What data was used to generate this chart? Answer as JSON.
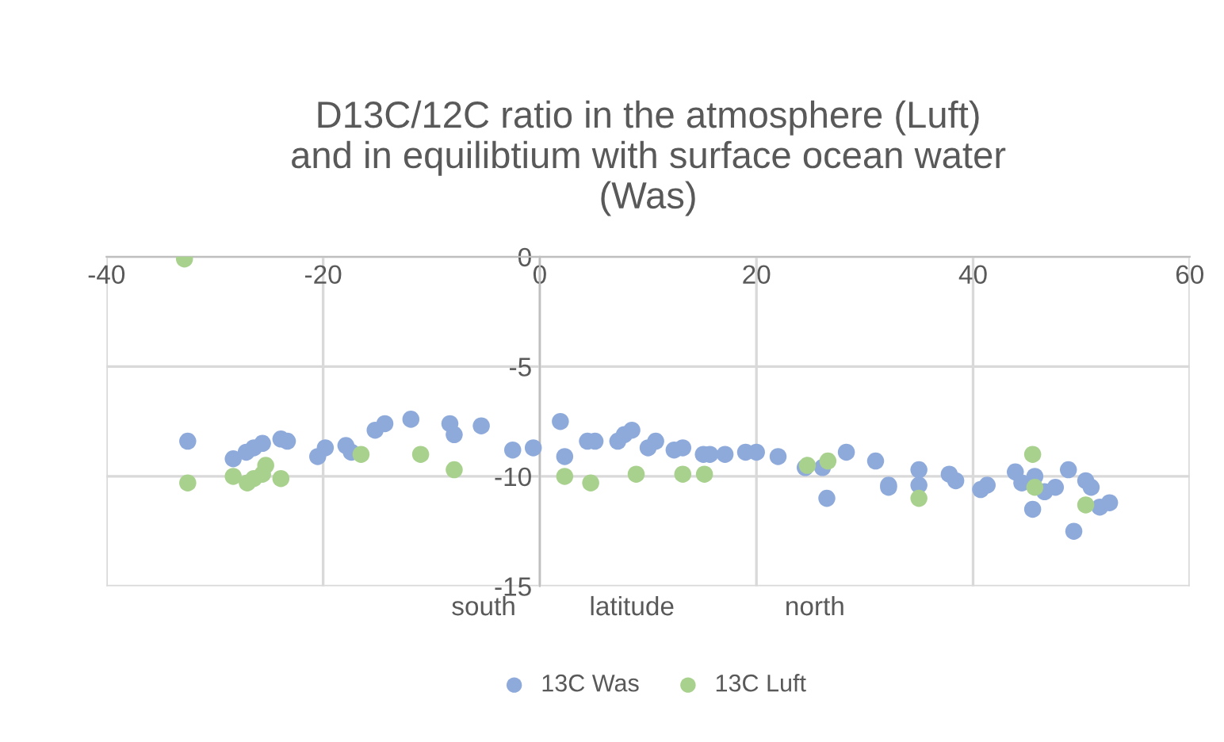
{
  "chart_data": {
    "type": "scatter",
    "title": "D13C/12C ratio in the atmosphere (Luft)\nand in equilibtium with surface ocean water\n(Was)",
    "xlabel": "south          latitude               north",
    "xlim": [
      -40,
      60
    ],
    "xticks": [
      -40,
      -20,
      0,
      20,
      40,
      60
    ],
    "ylim": [
      -15,
      0
    ],
    "yticks": [
      -15,
      -10,
      -5,
      0
    ],
    "grid": true,
    "legend": "bottom",
    "marker": "circle",
    "series": [
      {
        "name": "13C Was",
        "color": "#8eaadb",
        "x": [
          -32.5,
          -28.3,
          -27.1,
          -26.4,
          -25.6,
          -23.9,
          -23.3,
          -20.5,
          -19.8,
          -17.9,
          -17.4,
          -15.2,
          -14.3,
          -11.9,
          -8.3,
          -7.9,
          -5.4,
          -2.5,
          -0.6,
          1.9,
          2.3,
          4.4,
          5.1,
          7.2,
          7.8,
          8.5,
          10.0,
          10.7,
          12.4,
          13.2,
          15.1,
          15.7,
          17.1,
          19.0,
          20.0,
          22.0,
          24.5,
          26.1,
          26.5,
          28.3,
          31.0,
          32.2,
          32.2,
          35.0,
          35.0,
          37.8,
          38.4,
          40.7,
          41.3,
          43.9,
          44.5,
          45.7,
          45.5,
          46.6,
          47.6,
          48.8,
          49.3,
          50.4,
          50.9,
          51.7,
          52.6
        ],
        "values": [
          -8.4,
          -9.2,
          -8.9,
          -8.7,
          -8.5,
          -8.3,
          -8.4,
          -9.1,
          -8.7,
          -8.6,
          -8.9,
          -7.9,
          -7.6,
          -7.4,
          -7.6,
          -8.1,
          -7.7,
          -8.8,
          -8.7,
          -7.5,
          -9.1,
          -8.4,
          -8.4,
          -8.4,
          -8.1,
          -7.9,
          -8.7,
          -8.4,
          -8.8,
          -8.7,
          -9.0,
          -9.0,
          -9.0,
          -8.9,
          -8.9,
          -9.1,
          -9.6,
          -9.6,
          -11.0,
          -8.9,
          -9.3,
          -10.4,
          -10.5,
          -9.7,
          -10.4,
          -9.9,
          -10.2,
          -10.6,
          -10.4,
          -9.8,
          -10.3,
          -10.0,
          -11.5,
          -10.7,
          -10.5,
          -9.7,
          -12.5,
          -10.2,
          -10.5,
          -11.4,
          -11.2
        ]
      },
      {
        "name": "13C Luft",
        "color": "#a9d18e",
        "x": [
          -32.8,
          -32.5,
          -28.3,
          -27.0,
          -26.4,
          -25.6,
          -25.3,
          -23.9,
          -16.5,
          -11.0,
          -7.9,
          2.3,
          4.7,
          8.9,
          13.2,
          15.2,
          24.7,
          26.6,
          35.0,
          45.5,
          45.7,
          50.4
        ],
        "values": [
          -0.1,
          -10.3,
          -10.0,
          -10.3,
          -10.1,
          -9.9,
          -9.5,
          -10.1,
          -9.0,
          -9.0,
          -9.7,
          -10.0,
          -10.3,
          -9.9,
          -9.9,
          -9.9,
          -9.5,
          -9.3,
          -11.0,
          -9.0,
          -10.5,
          -11.3
        ]
      }
    ]
  }
}
